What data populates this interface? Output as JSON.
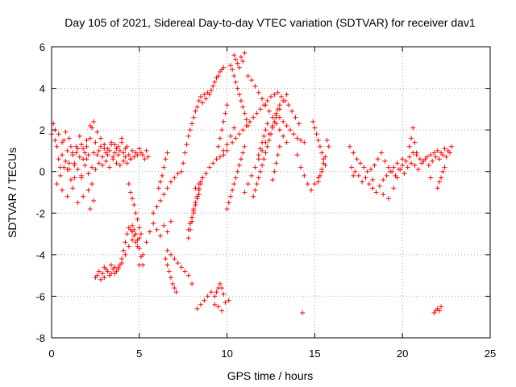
{
  "chart_data": {
    "type": "scatter",
    "title": "Day 105 of 2021, Sidereal Day-to-day VTEC variation (SDTVAR) for receiver dav1",
    "xlabel": "GPS time / hours",
    "ylabel": "SDTVAR / TECUs",
    "xlim": [
      0,
      25
    ],
    "ylim": [
      -8,
      6
    ],
    "xticks": [
      0,
      5,
      10,
      15,
      20,
      25
    ],
    "yticks": [
      -8,
      -6,
      -4,
      -2,
      0,
      2,
      4,
      6
    ],
    "grid": true,
    "marker": "+",
    "color": "#ff0000",
    "series": [
      {
        "name": "SDTVAR",
        "x": [
          0.0,
          0.1,
          0.2,
          0.3,
          0.4,
          0.5,
          0.6,
          0.7,
          0.8,
          0.9,
          1.0,
          1.1,
          1.2,
          1.3,
          1.4,
          1.5,
          1.6,
          1.7,
          1.8,
          1.9,
          2.0,
          2.1,
          2.2,
          2.3,
          2.4,
          2.5,
          2.6,
          2.7,
          2.8,
          2.9,
          3.0,
          3.1,
          3.2,
          3.3,
          3.4,
          3.5,
          3.6,
          3.7,
          3.8,
          3.9,
          4.0,
          4.1,
          4.2,
          4.3,
          4.4,
          4.5,
          4.6,
          4.7,
          4.8,
          4.9,
          5.0,
          5.1,
          5.2,
          5.3,
          5.4,
          5.5,
          0.2,
          0.4,
          0.6,
          0.8,
          1.0,
          1.2,
          1.4,
          1.6,
          1.8,
          2.0,
          2.2,
          2.4,
          2.6,
          2.8,
          3.0,
          3.2,
          3.4,
          3.6,
          3.8,
          4.0,
          4.2,
          0.5,
          0.7,
          0.9,
          1.1,
          1.3,
          1.5,
          1.7,
          1.9,
          2.1,
          2.3,
          2.5,
          2.7,
          2.9,
          3.1,
          3.3,
          3.5,
          3.7,
          3.9,
          4.1,
          4.3,
          4.5,
          0.3,
          0.6,
          0.9,
          1.2,
          1.5,
          1.8,
          2.1,
          2.3,
          2.2,
          2.4,
          1.0,
          1.3,
          1.7,
          2.0,
          2.5,
          2.6,
          2.7,
          2.8,
          2.9,
          3.0,
          3.1,
          3.2,
          3.3,
          3.4,
          3.5,
          3.6,
          3.7,
          3.8,
          3.9,
          4.0,
          4.1,
          4.2,
          4.3,
          4.4,
          4.5,
          4.6,
          4.7,
          4.8,
          4.9,
          5.0,
          3.0,
          3.2,
          3.4,
          3.6,
          3.8,
          4.0,
          4.2,
          4.4,
          4.6,
          4.6,
          4.7,
          4.8,
          4.9,
          5.0,
          5.1,
          5.2,
          4.4,
          4.5,
          4.6,
          4.7,
          4.8,
          4.9,
          5.0,
          5.1,
          5.0,
          5.2,
          5.4,
          5.6,
          5.8,
          6.0,
          6.2,
          6.4,
          6.6,
          6.8,
          5.8,
          6.0,
          6.2,
          6.4,
          6.6,
          6.8,
          7.0,
          7.2,
          6.1,
          6.2,
          6.3,
          6.4,
          6.5,
          6.6,
          6.6,
          6.8,
          7.0,
          7.2,
          7.4,
          7.6,
          7.8,
          8.0,
          6.5,
          6.6,
          6.7,
          6.8,
          6.9,
          7.0,
          7.1,
          7.8,
          7.9,
          8.0,
          8.1,
          8.2,
          8.3,
          8.4,
          7.4,
          7.5,
          7.6,
          7.7,
          7.8,
          7.9,
          8.0,
          8.1,
          8.2,
          8.3,
          8.4,
          8.5,
          8.6,
          8.7,
          8.8,
          8.9,
          9.0,
          9.1,
          9.2,
          9.3,
          9.4,
          9.5,
          9.6,
          9.7,
          9.8,
          8.2,
          8.4,
          8.6,
          8.8,
          9.0,
          9.2,
          9.4,
          9.6,
          9.8,
          10.0,
          7.9,
          8.0,
          8.1,
          8.2,
          8.3,
          8.4,
          8.5,
          8.6,
          7.8,
          7.9,
          8.0,
          8.1,
          8.2,
          8.3,
          8.4,
          8.5,
          8.3,
          8.5,
          8.7,
          8.9,
          9.1,
          9.3,
          9.5,
          9.7,
          9.9,
          10.1,
          9.3,
          9.4,
          9.5,
          9.6,
          9.7,
          9.8,
          9.5,
          9.6,
          9.7,
          9.8,
          9.9,
          10.0,
          9.8,
          10.0,
          10.2,
          10.4,
          10.2,
          10.3,
          10.4,
          10.5,
          10.6,
          10.7,
          10.8,
          10.9,
          11.0,
          11.1,
          11.2,
          10.4,
          10.5,
          10.6,
          10.7,
          10.8,
          10.9,
          11.0,
          10.0,
          10.1,
          10.2,
          10.3,
          10.4,
          10.5,
          10.6,
          10.7,
          10.8,
          10.9,
          11.0,
          10.3,
          10.5,
          10.7,
          10.9,
          11.1,
          11.3,
          11.5,
          11.7,
          11.9,
          12.1,
          12.3,
          12.5,
          12.7,
          12.9,
          13.1,
          13.3,
          13.5,
          13.7,
          13.9,
          14.1,
          11.0,
          11.2,
          11.4,
          11.6,
          11.8,
          12.0,
          12.2,
          12.4,
          12.6,
          12.8,
          13.0,
          13.2,
          13.4,
          11.2,
          11.4,
          11.6,
          11.8,
          12.0,
          12.2,
          12.4,
          12.6,
          12.8,
          13.0,
          13.2,
          13.4,
          11.5,
          11.6,
          11.7,
          11.8,
          11.9,
          12.0,
          12.1,
          12.2,
          12.3,
          12.4,
          12.5,
          12.6,
          12.7,
          12.8,
          12.9,
          13.0,
          11.8,
          11.9,
          12.0,
          12.1,
          12.2,
          12.3,
          12.6,
          12.7,
          12.8,
          12.9,
          13.0,
          12.8,
          13.0,
          13.2,
          13.4,
          13.6,
          13.8,
          14.0,
          14.2,
          14.4,
          14.0,
          14.2,
          14.4,
          14.6,
          14.8,
          15.0,
          15.2,
          15.4,
          15.6,
          14.9,
          15.0,
          15.1,
          15.2,
          15.3,
          15.4,
          15.5,
          15.2,
          15.3,
          15.4,
          15.5,
          15.6,
          15.7,
          15.8,
          14.3,
          17.0,
          17.2,
          17.4,
          17.6,
          17.8,
          18.0,
          18.2,
          18.4,
          18.6,
          18.8,
          19.0,
          19.2,
          19.4,
          19.6,
          19.8,
          20.0,
          20.2,
          20.4,
          20.6,
          20.8,
          21.0,
          21.2,
          21.4,
          21.6,
          21.8,
          22.0,
          22.2,
          22.4,
          22.6,
          22.8,
          17.1,
          17.3,
          17.5,
          17.7,
          17.9,
          18.1,
          18.3,
          18.5,
          18.7,
          18.9,
          19.1,
          19.3,
          19.5,
          19.7,
          19.9,
          20.1,
          20.3,
          20.5,
          20.7,
          20.9,
          21.1,
          21.3,
          21.5,
          21.7,
          21.9,
          22.1,
          22.3,
          22.5,
          22.7,
          17.2,
          18.3,
          18.9,
          19.2,
          19.5,
          19.7,
          20.0,
          20.4,
          20.5,
          20.6,
          20.7,
          20.8,
          21.6,
          22.0,
          22.1,
          22.2,
          22.3,
          22.4,
          21.8,
          21.9,
          22.0,
          22.1,
          22.2
        ],
        "y": [
          1.8,
          2.3,
          1.5,
          1.2,
          0.6,
          0.2,
          0.8,
          1.5,
          0.5,
          1.0,
          0.4,
          1.2,
          0.8,
          0.3,
          0.9,
          1.1,
          0.7,
          1.3,
          0.6,
          0.9,
          1.2,
          0.8,
          1.6,
          2.1,
          0.9,
          1.4,
          0.8,
          1.0,
          1.2,
          0.7,
          1.1,
          0.9,
          0.8,
          1.0,
          1.3,
          0.7,
          0.9,
          1.1,
          0.8,
          1.0,
          1.6,
          0.9,
          0.7,
          1.2,
          0.8,
          0.6,
          1.0,
          0.7,
          0.9,
          0.8,
          1.1,
          0.9,
          0.8,
          0.6,
          1.0,
          0.7,
          2.0,
          1.8,
          1.4,
          1.9,
          1.6,
          0.9,
          1.2,
          1.7,
          1.1,
          1.5,
          2.2,
          2.4,
          1.9,
          1.6,
          1.3,
          1.1,
          1.4,
          1.3,
          1.2,
          1.4,
          1.1,
          -0.2,
          0.2,
          0.1,
          -0.4,
          -0.3,
          0.1,
          -0.2,
          0.3,
          -0.1,
          0.2,
          0.1,
          0.4,
          0.3,
          0.5,
          0.2,
          0.6,
          0.4,
          0.3,
          0.5,
          0.4,
          0.6,
          -0.6,
          -0.9,
          -1.2,
          -0.8,
          -1.5,
          -1.2,
          -0.9,
          -0.6,
          -1.8,
          -1.4,
          0.1,
          0.4,
          -0.3,
          0.6,
          -5.1,
          -5.0,
          -4.8,
          -5.2,
          -4.9,
          -5.1,
          -4.7,
          -4.8,
          -5.0,
          -4.9,
          -4.7,
          -4.6,
          -4.8,
          -4.7,
          -4.5,
          -4.2,
          -3.8,
          -3.4,
          -3.0,
          -2.7,
          -2.8,
          -2.9,
          -3.1,
          -3.4,
          -3.6,
          -3.2,
          -4.6,
          -4.8,
          -4.5,
          -4.9,
          -4.6,
          -4.4,
          -4.0,
          -3.6,
          -3.3,
          -2.6,
          -2.8,
          -3.0,
          -3.3,
          -3.7,
          -4.1,
          -4.5,
          -0.6,
          -1.0,
          -1.3,
          -1.6,
          -2.0,
          -2.3,
          -2.7,
          -3.0,
          -4.5,
          -4.0,
          -3.4,
          -2.9,
          -2.5,
          -2.8,
          -3.1,
          -2.6,
          -2.9,
          -2.4,
          -2.0,
          -1.7,
          -1.4,
          -1.1,
          -0.8,
          -0.5,
          -0.3,
          -0.1,
          -0.8,
          -0.5,
          -0.2,
          0.2,
          0.6,
          0.9,
          -3.8,
          -4.0,
          -4.2,
          -4.4,
          -4.6,
          -4.8,
          -5.0,
          -5.4,
          -4.2,
          -4.5,
          -4.8,
          -5.1,
          -5.4,
          -5.6,
          -5.8,
          -2.8,
          -2.5,
          -2.2,
          -1.9,
          -1.6,
          -1.3,
          -1.1,
          0.0,
          0.4,
          0.9,
          1.3,
          1.7,
          2.0,
          2.3,
          2.6,
          2.9,
          3.1,
          3.4,
          3.6,
          3.3,
          3.7,
          3.5,
          3.8,
          3.7,
          3.9,
          4.1,
          4.3,
          4.5,
          4.6,
          4.8,
          4.9,
          5.0,
          -0.8,
          -0.6,
          -0.3,
          -0.1,
          0.2,
          0.4,
          0.6,
          0.7,
          0.8,
          1.0,
          -2.5,
          -2.2,
          -1.8,
          -1.5,
          -1.2,
          -0.9,
          -0.6,
          -0.3,
          -3.2,
          -2.8,
          -2.4,
          -2.0,
          -1.6,
          -1.2,
          -0.8,
          -0.5,
          -6.6,
          -6.4,
          -6.2,
          -6.0,
          -5.8,
          -6.4,
          -6.5,
          -6.7,
          -6.3,
          -6.2,
          -6.0,
          -5.8,
          -5.6,
          -5.4,
          -5.6,
          -5.9,
          1.2,
          1.6,
          2.0,
          2.4,
          2.8,
          3.2,
          1.0,
          1.3,
          1.7,
          2.1,
          5.1,
          4.9,
          4.6,
          4.3,
          4.0,
          3.7,
          3.4,
          3.1,
          2.8,
          2.5,
          2.2,
          5.6,
          5.4,
          5.2,
          5.0,
          5.5,
          5.3,
          5.7,
          -1.8,
          -1.5,
          -1.2,
          -0.9,
          -0.6,
          -0.3,
          0.0,
          0.3,
          0.6,
          0.9,
          1.2,
          1.4,
          1.6,
          1.8,
          2.0,
          2.2,
          2.4,
          2.6,
          2.8,
          3.0,
          3.2,
          3.4,
          3.6,
          3.7,
          3.8,
          3.6,
          3.4,
          3.2,
          2.9,
          2.6,
          2.3,
          -1.0,
          -0.6,
          -0.2,
          0.2,
          0.6,
          1.0,
          1.4,
          1.8,
          2.2,
          2.6,
          3.0,
          3.4,
          3.7,
          4.6,
          4.4,
          4.1,
          3.8,
          3.5,
          3.2,
          2.9,
          2.6,
          2.3,
          2.0,
          1.7,
          1.4,
          -1.2,
          -0.9,
          -0.6,
          -0.3,
          0.0,
          0.3,
          0.6,
          0.9,
          1.2,
          1.5,
          1.8,
          2.1,
          2.4,
          2.7,
          3.0,
          3.2,
          0.8,
          1.1,
          1.4,
          1.7,
          2.0,
          2.3,
          -0.4,
          0.0,
          0.4,
          0.8,
          1.2,
          2.8,
          2.6,
          2.4,
          2.2,
          2.0,
          1.8,
          1.6,
          1.5,
          1.4,
          0.8,
          0.2,
          -0.2,
          -0.6,
          -0.9,
          -0.6,
          -0.3,
          0.0,
          0.3,
          2.4,
          2.1,
          1.8,
          1.5,
          1.2,
          0.9,
          0.6,
          -0.5,
          -0.2,
          0.1,
          0.4,
          0.7,
          1.5,
          1.2,
          -6.8,
          1.2,
          0.9,
          0.6,
          0.4,
          0.2,
          0.0,
          0.1,
          0.3,
          0.6,
          0.9,
          0.5,
          0.2,
          0.0,
          -0.2,
          0.1,
          0.3,
          0.5,
          0.7,
          0.9,
          0.8,
          0.6,
          0.5,
          0.7,
          0.8,
          0.9,
          1.0,
          0.9,
          1.1,
          1.0,
          1.2,
          0.2,
          0.0,
          -0.2,
          -0.5,
          -0.3,
          -0.6,
          -0.8,
          -1.0,
          -0.7,
          -0.4,
          -0.2,
          0.0,
          0.2,
          0.4,
          0.1,
          -0.1,
          0.2,
          0.4,
          0.3,
          0.1,
          0.4,
          0.6,
          0.3,
          0.5,
          0.7,
          0.6,
          0.8,
          0.7,
          0.9,
          -0.2,
          -0.4,
          -1.1,
          -1.3,
          -0.8,
          -0.3,
          0.6,
          1.2,
          1.6,
          2.1,
          1.4,
          0.9,
          -0.3,
          -0.8,
          -0.5,
          -0.3,
          0.0,
          0.2,
          -6.8,
          -6.7,
          -6.6,
          -6.7,
          -6.5
        ]
      }
    ]
  }
}
